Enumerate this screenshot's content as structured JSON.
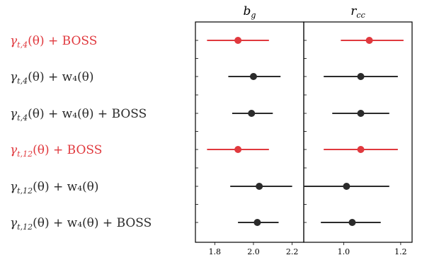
{
  "chart_data": {
    "type": "forest",
    "colors": {
      "highlight": "#e0393e",
      "default": "#2b2b2b"
    },
    "rows": [
      {
        "name_base": "γ",
        "name_sub": "t,4",
        "name_tail": "(θ) + BOSS",
        "color": "highlight"
      },
      {
        "name_base": "γ",
        "name_sub": "t,4",
        "name_tail": "(θ) + w₄(θ)",
        "color": "default"
      },
      {
        "name_base": "γ",
        "name_sub": "t,4",
        "name_tail": "(θ) + w₄(θ) + BOSS",
        "color": "default"
      },
      {
        "name_base": "γ",
        "name_sub": "t,12",
        "name_tail": "(θ) + BOSS",
        "color": "highlight"
      },
      {
        "name_base": "γ",
        "name_sub": "t,12",
        "name_tail": "(θ) + w₄(θ)",
        "color": "default"
      },
      {
        "name_base": "γ",
        "name_sub": "t,12",
        "name_tail": "(θ) + w₄(θ) + BOSS",
        "color": "default"
      }
    ],
    "panels": [
      {
        "title_base": "b",
        "title_sub": "g",
        "xlim": [
          1.7,
          2.26
        ],
        "ticks": [
          1.8,
          2.0,
          2.2
        ],
        "tick_labels": [
          "1.8",
          "2.0",
          "2.2"
        ],
        "points": [
          {
            "value": 1.92,
            "low": 1.76,
            "high": 2.08
          },
          {
            "value": 2.0,
            "low": 1.87,
            "high": 2.14
          },
          {
            "value": 1.99,
            "low": 1.89,
            "high": 2.1
          },
          {
            "value": 1.92,
            "low": 1.76,
            "high": 2.08
          },
          {
            "value": 2.03,
            "low": 1.88,
            "high": 2.2
          },
          {
            "value": 2.02,
            "low": 1.92,
            "high": 2.13
          }
        ]
      },
      {
        "title_base": "r",
        "title_sub": "cc",
        "xlim": [
          0.86,
          1.24
        ],
        "ticks": [
          1.0,
          1.2
        ],
        "tick_labels": [
          "1.0",
          "1.2"
        ],
        "points": [
          {
            "value": 1.09,
            "low": 0.99,
            "high": 1.21
          },
          {
            "value": 1.06,
            "low": 0.93,
            "high": 1.19
          },
          {
            "value": 1.06,
            "low": 0.96,
            "high": 1.16
          },
          {
            "value": 1.06,
            "low": 0.93,
            "high": 1.19
          },
          {
            "value": 1.01,
            "low": 0.86,
            "high": 1.16
          },
          {
            "value": 1.03,
            "low": 0.92,
            "high": 1.13
          }
        ]
      }
    ]
  }
}
